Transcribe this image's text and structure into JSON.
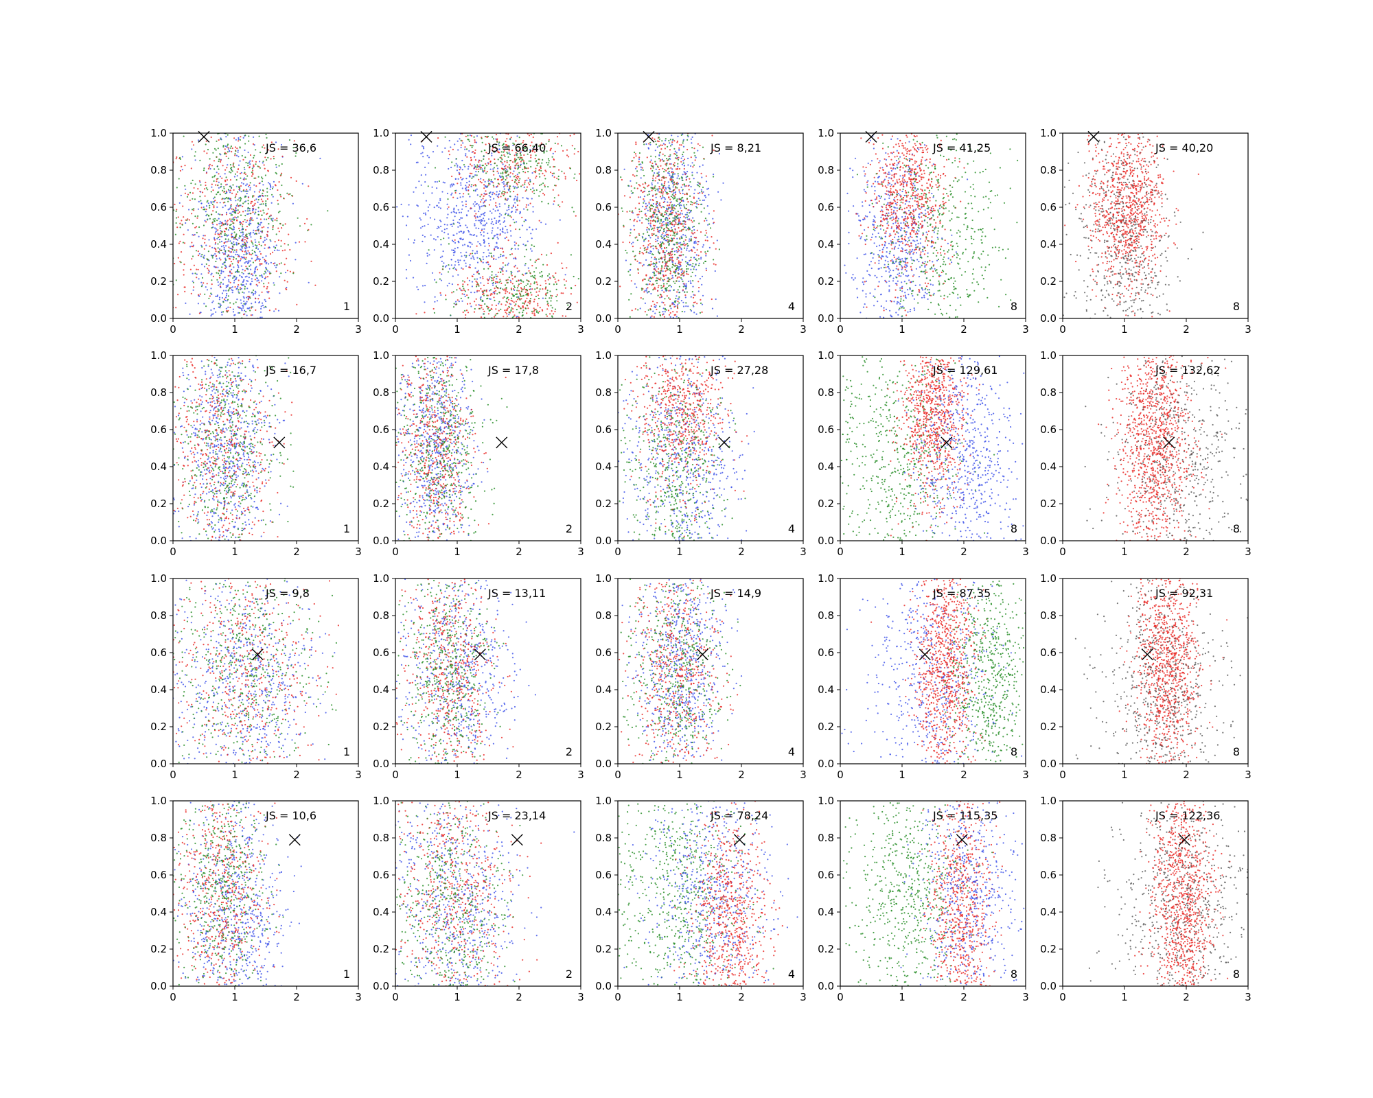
{
  "colors": {
    "blue": "#3a4fe8",
    "red": "#e8231f",
    "green": "#1f8a1f",
    "gray": "#555555",
    "marker": "#000000",
    "axes": "#000000"
  },
  "chart_data": {
    "type": "scatter",
    "layout": "grid of 4 rows x 5 columns",
    "grid": false,
    "xlim": [
      0,
      3
    ],
    "ylim": [
      0,
      1
    ],
    "xticks": [
      "0",
      "1",
      "2",
      "3"
    ],
    "yticks": [
      "0.0",
      "0.2",
      "0.4",
      "0.6",
      "0.8",
      "1.0"
    ],
    "rows": [
      {
        "marker": [
          0.5,
          0.98
        ],
        "panels": [
          {
            "js": "JS = 36,6",
            "k": "1",
            "clusters": [
              {
                "color": "blue",
                "x": 1.05,
                "sx": 0.35,
                "y": 0.3,
                "sy": 0.28,
                "n": 650
              },
              {
                "color": "red",
                "x": 1.0,
                "sx": 0.5,
                "y": 0.5,
                "sy": 0.3,
                "n": 450
              },
              {
                "color": "green",
                "x": 1.0,
                "sx": 0.45,
                "y": 0.6,
                "sy": 0.3,
                "n": 450
              }
            ]
          },
          {
            "js": "JS = 66,40",
            "k": "2",
            "clusters": [
              {
                "color": "blue",
                "x": 1.3,
                "sx": 0.5,
                "y": 0.55,
                "sy": 0.25,
                "n": 700
              },
              {
                "color": "red",
                "x": 1.9,
                "sx": 0.5,
                "y": 0.85,
                "sy": 0.12,
                "n": 300
              },
              {
                "color": "red",
                "x": 1.9,
                "sx": 0.5,
                "y": 0.12,
                "sy": 0.1,
                "n": 300
              },
              {
                "color": "green",
                "x": 1.9,
                "sx": 0.5,
                "y": 0.85,
                "sy": 0.12,
                "n": 250
              },
              {
                "color": "green",
                "x": 1.9,
                "sx": 0.5,
                "y": 0.12,
                "sy": 0.1,
                "n": 250
              }
            ]
          },
          {
            "js": "JS = 8,21",
            "k": "4",
            "clusters": [
              {
                "color": "blue",
                "x": 0.9,
                "sx": 0.3,
                "y": 0.5,
                "sy": 0.28,
                "n": 550
              },
              {
                "color": "red",
                "x": 0.8,
                "sx": 0.3,
                "y": 0.5,
                "sy": 0.3,
                "n": 550
              },
              {
                "color": "green",
                "x": 0.8,
                "sx": 0.3,
                "y": 0.5,
                "sy": 0.3,
                "n": 500
              }
            ]
          },
          {
            "js": "JS = 41,25",
            "k": "8",
            "clusters": [
              {
                "color": "blue",
                "x": 0.9,
                "sx": 0.35,
                "y": 0.45,
                "sy": 0.25,
                "n": 550
              },
              {
                "color": "red",
                "x": 1.1,
                "sx": 0.3,
                "y": 0.65,
                "sy": 0.22,
                "n": 650
              },
              {
                "color": "green",
                "x": 1.6,
                "sx": 0.5,
                "y": 0.45,
                "sy": 0.3,
                "n": 450
              }
            ]
          },
          {
            "js": "JS = 40,20",
            "k": "8",
            "clusters": [
              {
                "color": "red",
                "x": 1.05,
                "sx": 0.3,
                "y": 0.6,
                "sy": 0.22,
                "n": 900
              },
              {
                "color": "gray",
                "x": 1.0,
                "sx": 0.4,
                "y": 0.4,
                "sy": 0.3,
                "n": 500
              }
            ]
          }
        ]
      },
      {
        "marker": [
          1.72,
          0.53
        ],
        "panels": [
          {
            "js": "JS = 16,7",
            "k": "1",
            "clusters": [
              {
                "color": "blue",
                "x": 0.9,
                "sx": 0.35,
                "y": 0.5,
                "sy": 0.3,
                "n": 600
              },
              {
                "color": "red",
                "x": 0.85,
                "sx": 0.4,
                "y": 0.5,
                "sy": 0.3,
                "n": 450
              },
              {
                "color": "green",
                "x": 0.9,
                "sx": 0.4,
                "y": 0.5,
                "sy": 0.3,
                "n": 450
              }
            ]
          },
          {
            "js": "JS = 17,8",
            "k": "2",
            "clusters": [
              {
                "color": "blue",
                "x": 0.65,
                "sx": 0.3,
                "y": 0.5,
                "sy": 0.3,
                "n": 600
              },
              {
                "color": "red",
                "x": 0.65,
                "sx": 0.3,
                "y": 0.5,
                "sy": 0.3,
                "n": 500
              },
              {
                "color": "green",
                "x": 0.75,
                "sx": 0.35,
                "y": 0.5,
                "sy": 0.3,
                "n": 450
              }
            ]
          },
          {
            "js": "JS = 27,28",
            "k": "4",
            "clusters": [
              {
                "color": "blue",
                "x": 1.05,
                "sx": 0.45,
                "y": 0.45,
                "sy": 0.28,
                "n": 550
              },
              {
                "color": "red",
                "x": 1.05,
                "sx": 0.35,
                "y": 0.7,
                "sy": 0.2,
                "n": 550
              },
              {
                "color": "green",
                "x": 0.9,
                "sx": 0.4,
                "y": 0.35,
                "sy": 0.28,
                "n": 450
              }
            ]
          },
          {
            "js": "JS = 129,61",
            "k": "8",
            "clusters": [
              {
                "color": "green",
                "x": 0.9,
                "sx": 0.5,
                "y": 0.45,
                "sy": 0.3,
                "n": 500
              },
              {
                "color": "red",
                "x": 1.5,
                "sx": 0.25,
                "y": 0.68,
                "sy": 0.22,
                "n": 750
              },
              {
                "color": "blue",
                "x": 2.0,
                "sx": 0.4,
                "y": 0.45,
                "sy": 0.28,
                "n": 550
              }
            ]
          },
          {
            "js": "JS = 132,62",
            "k": "8",
            "clusters": [
              {
                "color": "red",
                "x": 1.5,
                "sx": 0.3,
                "y": 0.55,
                "sy": 0.3,
                "n": 1000
              },
              {
                "color": "gray",
                "x": 1.9,
                "sx": 0.55,
                "y": 0.45,
                "sy": 0.3,
                "n": 500
              }
            ]
          }
        ]
      },
      {
        "marker": [
          1.37,
          0.59
        ],
        "panels": [
          {
            "js": "JS = 9,8",
            "k": "1",
            "clusters": [
              {
                "color": "blue",
                "x": 1.2,
                "sx": 0.55,
                "y": 0.45,
                "sy": 0.3,
                "n": 550
              },
              {
                "color": "red",
                "x": 1.2,
                "sx": 0.55,
                "y": 0.5,
                "sy": 0.3,
                "n": 450
              },
              {
                "color": "green",
                "x": 1.2,
                "sx": 0.55,
                "y": 0.5,
                "sy": 0.3,
                "n": 450
              }
            ]
          },
          {
            "js": "JS = 13,11",
            "k": "2",
            "clusters": [
              {
                "color": "blue",
                "x": 1.0,
                "sx": 0.45,
                "y": 0.5,
                "sy": 0.3,
                "n": 550
              },
              {
                "color": "red",
                "x": 0.9,
                "sx": 0.35,
                "y": 0.5,
                "sy": 0.3,
                "n": 500
              },
              {
                "color": "green",
                "x": 0.85,
                "sx": 0.35,
                "y": 0.5,
                "sy": 0.3,
                "n": 450
              }
            ]
          },
          {
            "js": "JS = 14,9",
            "k": "4",
            "clusters": [
              {
                "color": "blue",
                "x": 1.0,
                "sx": 0.35,
                "y": 0.55,
                "sy": 0.28,
                "n": 600
              },
              {
                "color": "red",
                "x": 0.95,
                "sx": 0.35,
                "y": 0.5,
                "sy": 0.3,
                "n": 500
              },
              {
                "color": "green",
                "x": 0.95,
                "sx": 0.4,
                "y": 0.5,
                "sy": 0.3,
                "n": 450
              }
            ]
          },
          {
            "js": "JS = 87,35",
            "k": "8",
            "clusters": [
              {
                "color": "blue",
                "x": 1.5,
                "sx": 0.5,
                "y": 0.45,
                "sy": 0.3,
                "n": 500
              },
              {
                "color": "red",
                "x": 1.7,
                "sx": 0.25,
                "y": 0.55,
                "sy": 0.28,
                "n": 800
              },
              {
                "color": "green",
                "x": 2.4,
                "sx": 0.3,
                "y": 0.45,
                "sy": 0.3,
                "n": 550
              }
            ]
          },
          {
            "js": "JS = 92,31",
            "k": "8",
            "clusters": [
              {
                "color": "red",
                "x": 1.7,
                "sx": 0.25,
                "y": 0.55,
                "sy": 0.28,
                "n": 900
              },
              {
                "color": "gray",
                "x": 1.6,
                "sx": 0.5,
                "y": 0.4,
                "sy": 0.3,
                "n": 550
              }
            ]
          }
        ]
      },
      {
        "marker": [
          1.97,
          0.79
        ],
        "panels": [
          {
            "js": "JS = 10,6",
            "k": "1",
            "clusters": [
              {
                "color": "blue",
                "x": 1.0,
                "sx": 0.4,
                "y": 0.4,
                "sy": 0.3,
                "n": 600
              },
              {
                "color": "red",
                "x": 0.8,
                "sx": 0.35,
                "y": 0.5,
                "sy": 0.3,
                "n": 500
              },
              {
                "color": "green",
                "x": 0.8,
                "sx": 0.35,
                "y": 0.5,
                "sy": 0.3,
                "n": 450
              }
            ]
          },
          {
            "js": "JS = 23,14",
            "k": "2",
            "clusters": [
              {
                "color": "blue",
                "x": 1.0,
                "sx": 0.5,
                "y": 0.45,
                "sy": 0.3,
                "n": 550
              },
              {
                "color": "red",
                "x": 1.0,
                "sx": 0.45,
                "y": 0.55,
                "sy": 0.3,
                "n": 500
              },
              {
                "color": "green",
                "x": 0.9,
                "sx": 0.45,
                "y": 0.45,
                "sy": 0.3,
                "n": 450
              }
            ]
          },
          {
            "js": "JS = 78,24",
            "k": "4",
            "clusters": [
              {
                "color": "green",
                "x": 1.0,
                "sx": 0.5,
                "y": 0.5,
                "sy": 0.3,
                "n": 550
              },
              {
                "color": "blue",
                "x": 1.5,
                "sx": 0.5,
                "y": 0.5,
                "sy": 0.3,
                "n": 550
              },
              {
                "color": "red",
                "x": 1.85,
                "sx": 0.3,
                "y": 0.35,
                "sy": 0.28,
                "n": 600
              }
            ]
          },
          {
            "js": "JS = 115,35",
            "k": "8",
            "clusters": [
              {
                "color": "green",
                "x": 1.1,
                "sx": 0.45,
                "y": 0.5,
                "sy": 0.3,
                "n": 550
              },
              {
                "color": "red",
                "x": 1.95,
                "sx": 0.25,
                "y": 0.4,
                "sy": 0.3,
                "n": 650
              },
              {
                "color": "blue",
                "x": 2.1,
                "sx": 0.4,
                "y": 0.5,
                "sy": 0.3,
                "n": 500
              }
            ]
          },
          {
            "js": "JS = 122,36",
            "k": "8",
            "clusters": [
              {
                "color": "red",
                "x": 1.95,
                "sx": 0.25,
                "y": 0.45,
                "sy": 0.3,
                "n": 900
              },
              {
                "color": "gray",
                "x": 1.95,
                "sx": 0.55,
                "y": 0.45,
                "sy": 0.3,
                "n": 550
              }
            ]
          }
        ]
      }
    ]
  }
}
